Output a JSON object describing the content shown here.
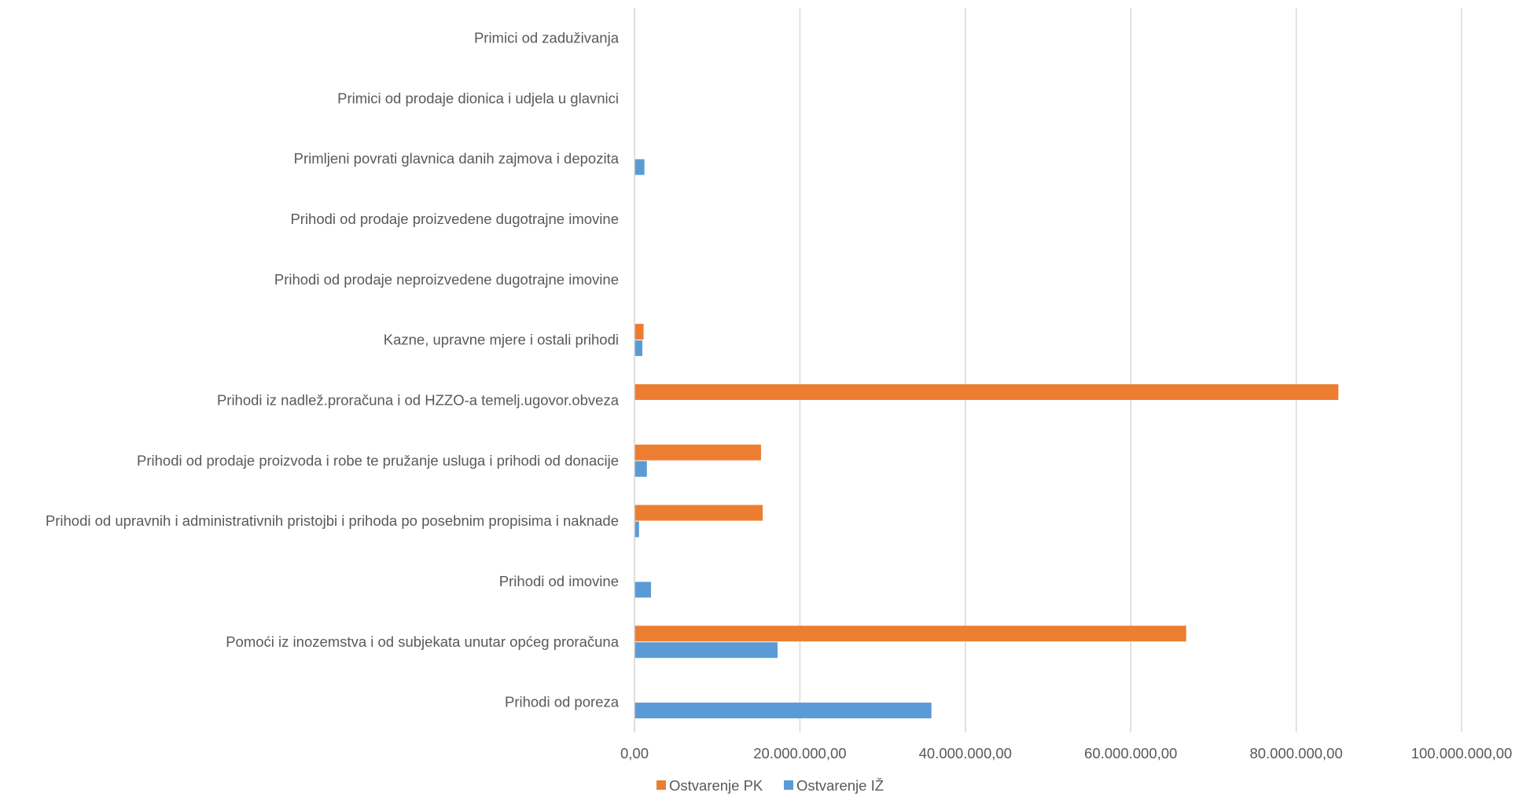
{
  "chart_data": {
    "type": "bar",
    "orientation": "horizontal",
    "categories": [
      "Prihodi od poreza",
      "Pomoći iz inozemstva i od subjekata unutar općeg proračuna",
      "Prihodi od imovine",
      "Prihodi od upravnih i administrativnih pristojbi i prihoda po posebnim propisima i naknade",
      "Prihodi od prodaje proizvoda i robe te pružanje usluga i prihodi od donacije",
      "Prihodi iz nadlež.proračuna i od HZZO-a temelj.ugovor.obveza",
      "Kazne, upravne mjere i ostali prihodi",
      "Prihodi od prodaje neproizvedene dugotrajne imovine",
      "Prihodi od prodaje proizvedene dugotrajne imovine",
      "Primljeni povrati glavnica danih zajmova i depozita",
      "Primici od prodaje dionica i udjela u glavnici",
      "Primici od zaduživanja"
    ],
    "series": [
      {
        "name": "Ostvarenje PK",
        "color": "#ED7D31",
        "values": [
          0,
          66700000,
          0,
          15500000,
          15300000,
          85100000,
          1100000,
          0,
          0,
          0,
          0,
          0
        ]
      },
      {
        "name": "Ostvarenje IŽ",
        "color": "#5B9BD5",
        "values": [
          35900000,
          17300000,
          2000000,
          550000,
          1500000,
          0,
          950000,
          0,
          0,
          1200000,
          0,
          0
        ]
      }
    ],
    "xlim": [
      0,
      100000000
    ],
    "xticks": [
      {
        "value": 0,
        "label": "0,00"
      },
      {
        "value": 20000000,
        "label": "20.000.000,00"
      },
      {
        "value": 40000000,
        "label": "40.000.000,00"
      },
      {
        "value": 60000000,
        "label": "60.000.000,00"
      },
      {
        "value": 80000000,
        "label": "80.000.000,00"
      },
      {
        "value": 100000000,
        "label": "100.000.000,00"
      }
    ],
    "grid": true,
    "gridColor": "#d9d9d9",
    "legend_position": "bottom-center",
    "title": "",
    "xlabel": "",
    "ylabel": ""
  }
}
